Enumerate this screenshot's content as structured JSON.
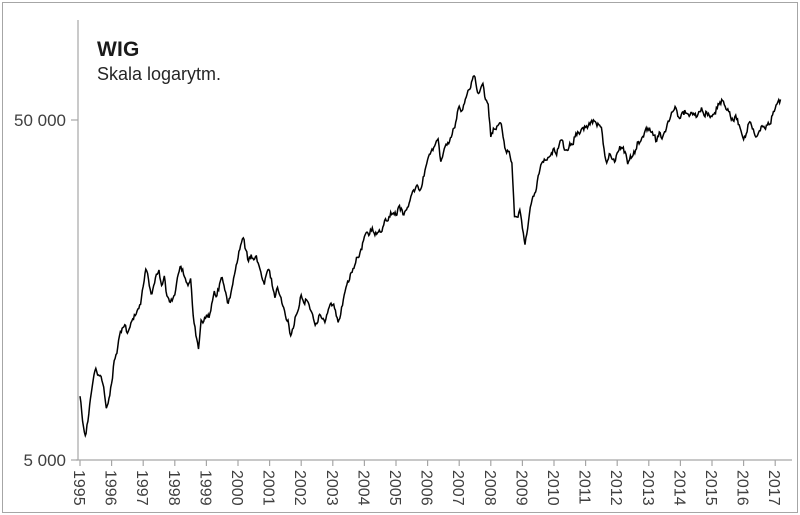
{
  "header": {
    "title": "WIG",
    "subtitle": "Skala logarytm."
  },
  "chart_data": {
    "type": "line",
    "title": "WIG",
    "subtitle": "Skala logarytm.",
    "series_name": "WIG",
    "y_scale": "log",
    "grid": "off",
    "legend": "none",
    "x_axis": {
      "start_year": 1995,
      "end_year": 2017,
      "tick_labels": [
        "1995",
        "1996",
        "1997",
        "1998",
        "1999",
        "2000",
        "2001",
        "2002",
        "2003",
        "2004",
        "2005",
        "2006",
        "2007",
        "2008",
        "2009",
        "2010",
        "2011",
        "2012",
        "2013",
        "2014",
        "2015",
        "2016",
        "2017"
      ]
    },
    "y_axis": {
      "ticks": [
        {
          "value": 5000,
          "label": "5 000"
        },
        {
          "value": 50000,
          "label": "50 000"
        }
      ],
      "min_shown": 5000,
      "max_data": 66900
    },
    "points_per_year": 12,
    "first_point": "1995-01",
    "last_point": "2017-03",
    "values": [
      7700,
      6500,
      5900,
      6500,
      7600,
      8600,
      9300,
      8900,
      8800,
      8200,
      7100,
      7600,
      8400,
      9800,
      10300,
      11600,
      12200,
      12500,
      11800,
      12300,
      13000,
      13300,
      13900,
      14340,
      16200,
      18200,
      17000,
      15400,
      16300,
      17600,
      18100,
      16300,
      17400,
      15200,
      14600,
      14700,
      15300,
      17200,
      18500,
      18200,
      17100,
      16300,
      17100,
      13300,
      11600,
      10600,
      12900,
      12800,
      13300,
      13100,
      14400,
      15700,
      15200,
      16500,
      17200,
      15800,
      14500,
      15000,
      16400,
      18080,
      19600,
      21400,
      22500,
      20700,
      19200,
      20100,
      19400,
      19900,
      18600,
      17300,
      16400,
      17850,
      18000,
      16300,
      15000,
      16100,
      15200,
      14200,
      13300,
      12900,
      11600,
      12200,
      13300,
      13920,
      15300,
      14500,
      14800,
      14300,
      13600,
      12700,
      12600,
      13400,
      13000,
      12700,
      13500,
      14370,
      14300,
      13800,
      12700,
      13400,
      14800,
      16100,
      16700,
      17800,
      18300,
      19700,
      19800,
      20820,
      22700,
      23400,
      23100,
      24100,
      22900,
      23300,
      23400,
      24200,
      25600,
      25300,
      26800,
      26640,
      26200,
      27800,
      27500,
      26300,
      27200,
      28500,
      30300,
      30800,
      32200,
      31000,
      32400,
      35600,
      38200,
      39700,
      40700,
      42600,
      44000,
      37700,
      40100,
      42400,
      42600,
      44500,
      47300,
      50410,
      54900,
      53200,
      56000,
      59600,
      61500,
      65700,
      66900,
      60200,
      61400,
      64000,
      57400,
      55650,
      44600,
      47300,
      46900,
      48500,
      48600,
      43300,
      40000,
      40400,
      37400,
      26000,
      25900,
      27230,
      24000,
      21500,
      24000,
      27700,
      29800,
      30700,
      34300,
      36900,
      37600,
      38100,
      38800,
      39990,
      41300,
      39400,
      42400,
      43700,
      40800,
      40700,
      42800,
      42300,
      44600,
      46200,
      45900,
      47490,
      47600,
      48000,
      49400,
      50000,
      49000,
      48400,
      47600,
      41200,
      37400,
      39800,
      38400,
      37600,
      40000,
      41900,
      41300,
      40300,
      37100,
      39300,
      39300,
      40800,
      43200,
      43400,
      44600,
      47460,
      46700,
      46000,
      45100,
      43300,
      46100,
      44000,
      46200,
      48600,
      50300,
      52800,
      54800,
      51280,
      50600,
      52900,
      52400,
      52000,
      52600,
      52300,
      50900,
      52900,
      54400,
      51500,
      52800,
      51420,
      51200,
      52500,
      54100,
      56400,
      57000,
      54800,
      53900,
      51300,
      49800,
      51700,
      48500,
      46470,
      43800,
      45500,
      49000,
      48200,
      45900,
      44700,
      46500,
      48100,
      47300,
      48300,
      48600,
      51750,
      54000,
      56500,
      57500
    ],
    "colors": {
      "line": "#000000",
      "axis": "#a6a6a6",
      "tick": "#a6a6a6",
      "tick_label": "#3f3f3f",
      "border": "#a6a6a6"
    }
  }
}
